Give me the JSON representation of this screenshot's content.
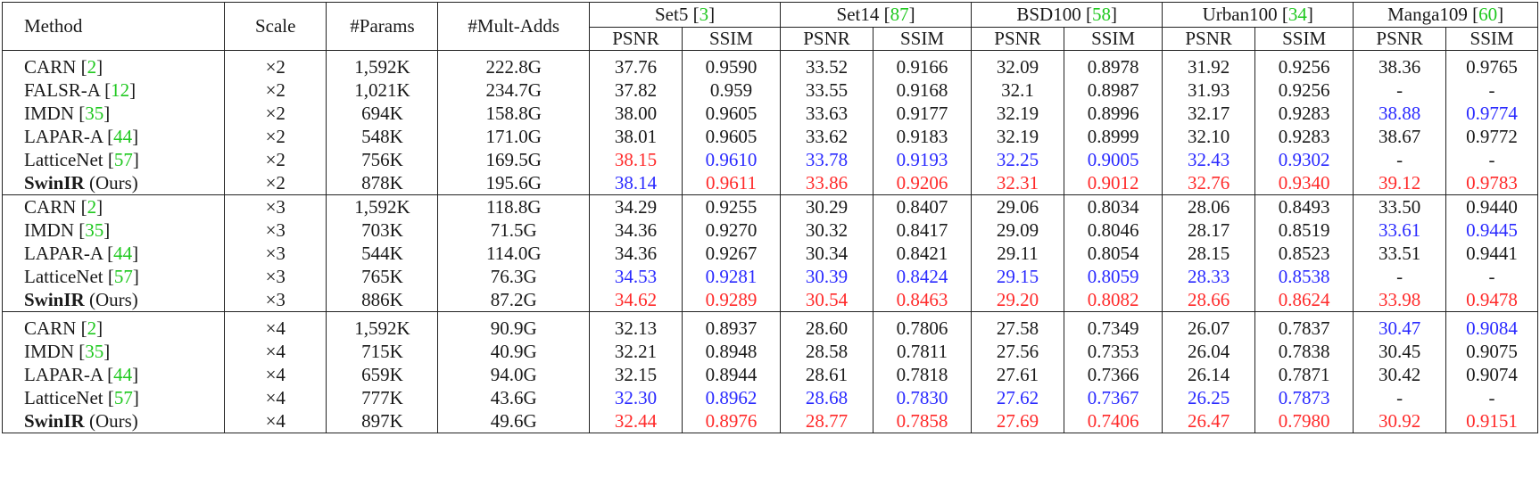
{
  "header": {
    "method": "Method",
    "scale": "Scale",
    "params": "#Params",
    "multadds": "#Mult-Adds",
    "datasets": [
      {
        "name": "Set5",
        "cite": "3"
      },
      {
        "name": "Set14",
        "cite": "87"
      },
      {
        "name": "BSD100",
        "cite": "58"
      },
      {
        "name": "Urban100",
        "cite": "34"
      },
      {
        "name": "Manga109",
        "cite": "60"
      }
    ],
    "psnr": "PSNR",
    "ssim": "SSIM"
  },
  "colors": {
    "best": "#ff2a2a",
    "second": "#2a2aff",
    "citation": "#1ec81e"
  },
  "groups": [
    {
      "rows": [
        {
          "name": "CARN",
          "cite": "2",
          "scale": "×2",
          "params": "1,592K",
          "multadds": "222.8G",
          "vals": [
            "37.76",
            "0.9590",
            "33.52",
            "0.9166",
            "32.09",
            "0.8978",
            "31.92",
            "0.9256",
            "38.36",
            "0.9765"
          ],
          "marks": [
            "",
            "",
            "",
            "",
            "",
            "",
            "",
            "",
            "",
            ""
          ]
        },
        {
          "name": "FALSR-A",
          "cite": "12",
          "scale": "×2",
          "params": "1,021K",
          "multadds": "234.7G",
          "vals": [
            "37.82",
            "0.959",
            "33.55",
            "0.9168",
            "32.1",
            "0.8987",
            "31.93",
            "0.9256",
            "-",
            "-"
          ],
          "marks": [
            "",
            "",
            "",
            "",
            "",
            "",
            "",
            "",
            "",
            ""
          ]
        },
        {
          "name": "IMDN",
          "cite": "35",
          "scale": "×2",
          "params": "694K",
          "multadds": "158.8G",
          "vals": [
            "38.00",
            "0.9605",
            "33.63",
            "0.9177",
            "32.19",
            "0.8996",
            "32.17",
            "0.9283",
            "38.88",
            "0.9774"
          ],
          "marks": [
            "",
            "",
            "",
            "",
            "",
            "",
            "",
            "",
            "blue",
            "blue"
          ]
        },
        {
          "name": "LAPAR-A",
          "cite": "44",
          "scale": "×2",
          "params": "548K",
          "multadds": "171.0G",
          "vals": [
            "38.01",
            "0.9605",
            "33.62",
            "0.9183",
            "32.19",
            "0.8999",
            "32.10",
            "0.9283",
            "38.67",
            "0.9772"
          ],
          "marks": [
            "",
            "",
            "",
            "",
            "",
            "",
            "",
            "",
            "",
            ""
          ]
        },
        {
          "name": "LatticeNet",
          "cite": "57",
          "scale": "×2",
          "params": "756K",
          "multadds": "169.5G",
          "vals": [
            "38.15",
            "0.9610",
            "33.78",
            "0.9193",
            "32.25",
            "0.9005",
            "32.43",
            "0.9302",
            "-",
            "-"
          ],
          "marks": [
            "red",
            "blue",
            "blue",
            "blue",
            "blue",
            "blue",
            "blue",
            "blue",
            "",
            ""
          ]
        },
        {
          "name": "SwinIR",
          "suffix": " (Ours)",
          "scale": "×2",
          "params": "878K",
          "multadds": "195.6G",
          "vals": [
            "38.14",
            "0.9611",
            "33.86",
            "0.9206",
            "32.31",
            "0.9012",
            "32.76",
            "0.9340",
            "39.12",
            "0.9783"
          ],
          "marks": [
            "blue",
            "red",
            "red",
            "red",
            "red",
            "red",
            "red",
            "red",
            "red",
            "red"
          ]
        }
      ]
    },
    {
      "rows": [
        {
          "name": "CARN",
          "cite": "2",
          "scale": "×3",
          "params": "1,592K",
          "multadds": "118.8G",
          "vals": [
            "34.29",
            "0.9255",
            "30.29",
            "0.8407",
            "29.06",
            "0.8034",
            "28.06",
            "0.8493",
            "33.50",
            "0.9440"
          ],
          "marks": [
            "",
            "",
            "",
            "",
            "",
            "",
            "",
            "",
            "",
            ""
          ]
        },
        {
          "name": "IMDN",
          "cite": "35",
          "scale": "×3",
          "params": "703K",
          "multadds": "71.5G",
          "vals": [
            "34.36",
            "0.9270",
            "30.32",
            "0.8417",
            "29.09",
            "0.8046",
            "28.17",
            "0.8519",
            "33.61",
            "0.9445"
          ],
          "marks": [
            "",
            "",
            "",
            "",
            "",
            "",
            "",
            "",
            "blue",
            "blue"
          ]
        },
        {
          "name": "LAPAR-A",
          "cite": "44",
          "scale": "×3",
          "params": "544K",
          "multadds": "114.0G",
          "vals": [
            "34.36",
            "0.9267",
            "30.34",
            "0.8421",
            "29.11",
            "0.8054",
            "28.15",
            "0.8523",
            "33.51",
            "0.9441"
          ],
          "marks": [
            "",
            "",
            "",
            "",
            "",
            "",
            "",
            "",
            "",
            ""
          ]
        },
        {
          "name": "LatticeNet",
          "cite": "57",
          "scale": "×3",
          "params": "765K",
          "multadds": "76.3G",
          "vals": [
            "34.53",
            "0.9281",
            "30.39",
            "0.8424",
            "29.15",
            "0.8059",
            "28.33",
            "0.8538",
            "-",
            "-"
          ],
          "marks": [
            "blue",
            "blue",
            "blue",
            "blue",
            "blue",
            "blue",
            "blue",
            "blue",
            "",
            ""
          ]
        },
        {
          "name": "SwinIR",
          "suffix": " (Ours)",
          "scale": "×3",
          "params": "886K",
          "multadds": "87.2G",
          "vals": [
            "34.62",
            "0.9289",
            "30.54",
            "0.8463",
            "29.20",
            "0.8082",
            "28.66",
            "0.8624",
            "33.98",
            "0.9478"
          ],
          "marks": [
            "red",
            "red",
            "red",
            "red",
            "red",
            "red",
            "red",
            "red",
            "red",
            "red"
          ]
        }
      ]
    },
    {
      "rows": [
        {
          "name": "CARN",
          "cite": "2",
          "scale": "×4",
          "params": "1,592K",
          "multadds": "90.9G",
          "vals": [
            "32.13",
            "0.8937",
            "28.60",
            "0.7806",
            "27.58",
            "0.7349",
            "26.07",
            "0.7837",
            "30.47",
            "0.9084"
          ],
          "marks": [
            "",
            "",
            "",
            "",
            "",
            "",
            "",
            "",
            "blue",
            "blue"
          ]
        },
        {
          "name": "IMDN",
          "cite": "35",
          "scale": "×4",
          "params": "715K",
          "multadds": "40.9G",
          "vals": [
            "32.21",
            "0.8948",
            "28.58",
            "0.7811",
            "27.56",
            "0.7353",
            "26.04",
            "0.7838",
            "30.45",
            "0.9075"
          ],
          "marks": [
            "",
            "",
            "",
            "",
            "",
            "",
            "",
            "",
            "",
            ""
          ]
        },
        {
          "name": "LAPAR-A",
          "cite": "44",
          "scale": "×4",
          "params": "659K",
          "multadds": "94.0G",
          "vals": [
            "32.15",
            "0.8944",
            "28.61",
            "0.7818",
            "27.61",
            "0.7366",
            "26.14",
            "0.7871",
            "30.42",
            "0.9074"
          ],
          "marks": [
            "",
            "",
            "",
            "",
            "",
            "",
            "",
            "",
            "",
            ""
          ]
        },
        {
          "name": "LatticeNet",
          "cite": "57",
          "scale": "×4",
          "params": "777K",
          "multadds": "43.6G",
          "vals": [
            "32.30",
            "0.8962",
            "28.68",
            "0.7830",
            "27.62",
            "0.7367",
            "26.25",
            "0.7873",
            "-",
            "-"
          ],
          "marks": [
            "blue",
            "blue",
            "blue",
            "blue",
            "blue",
            "blue",
            "blue",
            "blue",
            "",
            ""
          ]
        },
        {
          "name": "SwinIR",
          "suffix": " (Ours)",
          "scale": "×4",
          "params": "897K",
          "multadds": "49.6G",
          "vals": [
            "32.44",
            "0.8976",
            "28.77",
            "0.7858",
            "27.69",
            "0.7406",
            "26.47",
            "0.7980",
            "30.92",
            "0.9151"
          ],
          "marks": [
            "red",
            "red",
            "red",
            "red",
            "red",
            "red",
            "red",
            "red",
            "red",
            "red"
          ]
        }
      ]
    }
  ]
}
